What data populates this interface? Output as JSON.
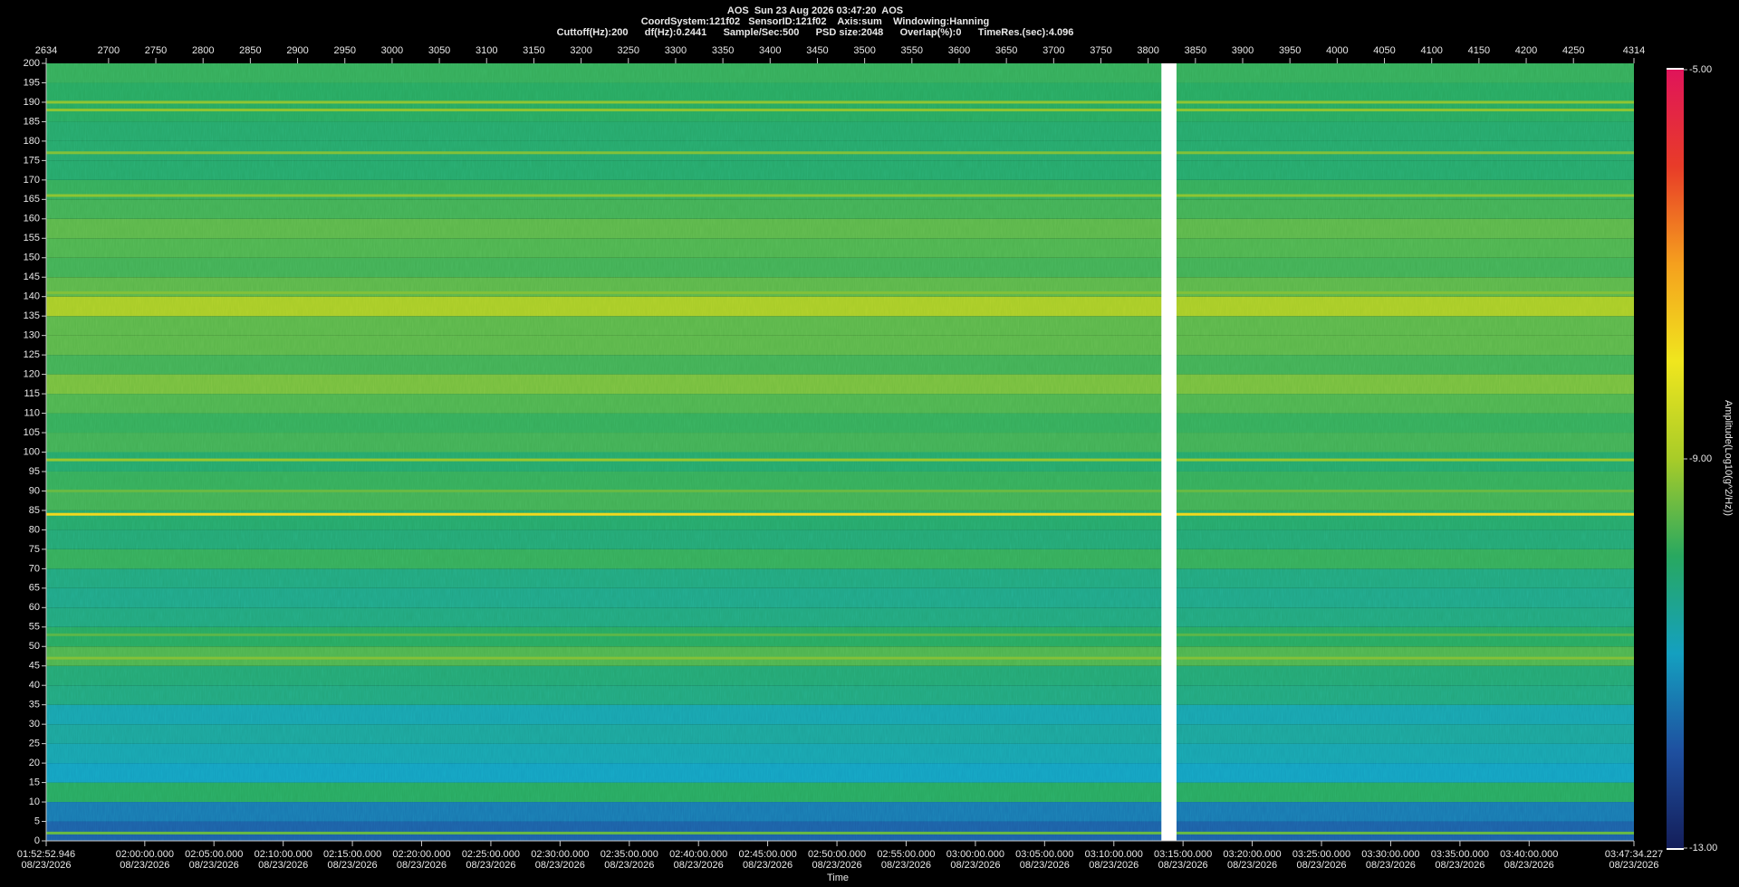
{
  "chart_data": {
    "type": "spectrogram",
    "header": [
      "AOS  Sun 23 Aug 2026 03:47:20  AOS",
      "CoordSystem:121f02   SensorID:121f02    Axis:sum    Windowing:Hanning",
      "Cuttoff(Hz):200      df(Hz):0.2441      Sample/Sec:500      PSD size:2048      Overlap(%):0      TimeRes.(sec):4.096"
    ],
    "xlabel": "Time",
    "colorbar_label": "Amplitude(Log10(g^2/Hz))",
    "xlim": [
      2634,
      4314
    ],
    "xticks": [
      2634,
      2700,
      2750,
      2800,
      2850,
      2900,
      2950,
      3000,
      3050,
      3100,
      3150,
      3200,
      3250,
      3300,
      3350,
      3400,
      3450,
      3500,
      3550,
      3600,
      3650,
      3700,
      3750,
      3800,
      3850,
      3900,
      3950,
      4000,
      4050,
      4100,
      4150,
      4200,
      4250,
      4314
    ],
    "time_ticks": [
      {
        "value": 2634,
        "label": "01:52:52.946",
        "date": "08/23/2026"
      },
      {
        "value": 2738.3,
        "label": "02:00:00.000",
        "date": "08/23/2026"
      },
      {
        "value": 2811.5,
        "label": "02:05:00.000",
        "date": "08/23/2026"
      },
      {
        "value": 2884.8,
        "label": "02:10:00.000",
        "date": "08/23/2026"
      },
      {
        "value": 2958.0,
        "label": "02:15:00.000",
        "date": "08/23/2026"
      },
      {
        "value": 3031.2,
        "label": "02:20:00.000",
        "date": "08/23/2026"
      },
      {
        "value": 3104.5,
        "label": "02:25:00.000",
        "date": "08/23/2026"
      },
      {
        "value": 3177.7,
        "label": "02:30:00.000",
        "date": "08/23/2026"
      },
      {
        "value": 3251.0,
        "label": "02:35:00.000",
        "date": "08/23/2026"
      },
      {
        "value": 3324.2,
        "label": "02:40:00.000",
        "date": "08/23/2026"
      },
      {
        "value": 3397.4,
        "label": "02:45:00.000",
        "date": "08/23/2026"
      },
      {
        "value": 3470.7,
        "label": "02:50:00.000",
        "date": "08/23/2026"
      },
      {
        "value": 3543.9,
        "label": "02:55:00.000",
        "date": "08/23/2026"
      },
      {
        "value": 3617.2,
        "label": "03:00:00.000",
        "date": "08/23/2026"
      },
      {
        "value": 3690.4,
        "label": "03:05:00.000",
        "date": "08/23/2026"
      },
      {
        "value": 3763.7,
        "label": "03:10:00.000",
        "date": "08/23/2026"
      },
      {
        "value": 3836.9,
        "label": "03:15:00.000",
        "date": "08/23/2026"
      },
      {
        "value": 3910.1,
        "label": "03:20:00.000",
        "date": "08/23/2026"
      },
      {
        "value": 3983.4,
        "label": "03:25:00.000",
        "date": "08/23/2026"
      },
      {
        "value": 4056.6,
        "label": "03:30:00.000",
        "date": "08/23/2026"
      },
      {
        "value": 4129.9,
        "label": "03:35:00.000",
        "date": "08/23/2026"
      },
      {
        "value": 4203.1,
        "label": "03:40:00.000",
        "date": "08/23/2026"
      },
      {
        "value": 4314,
        "label": "03:47:34.227",
        "date": "08/23/2026"
      }
    ],
    "ylim": [
      0,
      200
    ],
    "yticks": [
      0,
      5,
      10,
      15,
      20,
      25,
      30,
      35,
      40,
      45,
      50,
      55,
      60,
      65,
      70,
      75,
      80,
      85,
      90,
      95,
      100,
      105,
      110,
      115,
      120,
      125,
      130,
      135,
      140,
      145,
      150,
      155,
      160,
      165,
      170,
      175,
      180,
      185,
      190,
      195,
      200
    ],
    "clim": [
      -13,
      -5
    ],
    "cticks": [
      {
        "value": -13,
        "label": "-13.00"
      },
      {
        "value": -9,
        "label": "-9.00"
      },
      {
        "value": -5,
        "label": "-5.00"
      }
    ],
    "colormap": [
      "#141e5a",
      "#1e50a0",
      "#14a0c0",
      "#28a860",
      "#a8cc28",
      "#f0e61e",
      "#f5a01e",
      "#e83c28",
      "#e0145a"
    ],
    "freq_bins": [
      0,
      5,
      10,
      15,
      20,
      25,
      30,
      35,
      40,
      45,
      50,
      55,
      60,
      65,
      70,
      75,
      80,
      85,
      90,
      95,
      100,
      105,
      110,
      115,
      120,
      125,
      130,
      135,
      140,
      145,
      150,
      155,
      160,
      165,
      170,
      175,
      180,
      185,
      190,
      195,
      200
    ],
    "amplitudes": [
      -11.8,
      -11.5,
      -10.0,
      -11.0,
      -10.8,
      -10.6,
      -10.8,
      -10.3,
      -10.2,
      -9.7,
      -10.0,
      -10.3,
      -10.4,
      -10.3,
      -9.9,
      -10.2,
      -10.1,
      -9.8,
      -9.9,
      -10.1,
      -9.8,
      -9.9,
      -9.7,
      -9.4,
      -9.8,
      -9.6,
      -9.6,
      -9.0,
      -9.6,
      -9.8,
      -9.7,
      -9.6,
      -9.8,
      -9.9,
      -10.1,
      -10.1,
      -10.1,
      -10.0,
      -10.0,
      -9.9
    ],
    "lines": [
      {
        "freq": 190,
        "amplitude": -9.2
      },
      {
        "freq": 188,
        "amplitude": -9.2
      },
      {
        "freq": 177,
        "amplitude": -9.3
      },
      {
        "freq": 166,
        "amplitude": -9.2
      },
      {
        "freq": 141,
        "amplitude": -9.3
      },
      {
        "freq": 98,
        "amplitude": -9.1
      },
      {
        "freq": 90,
        "amplitude": -9.5
      },
      {
        "freq": 84,
        "amplitude": -7.8
      },
      {
        "freq": 53,
        "amplitude": -9.6
      },
      {
        "freq": 47,
        "amplitude": -9.3
      },
      {
        "freq": 2,
        "amplitude": -9.5
      }
    ],
    "gap": [
      3814,
      3830
    ]
  }
}
